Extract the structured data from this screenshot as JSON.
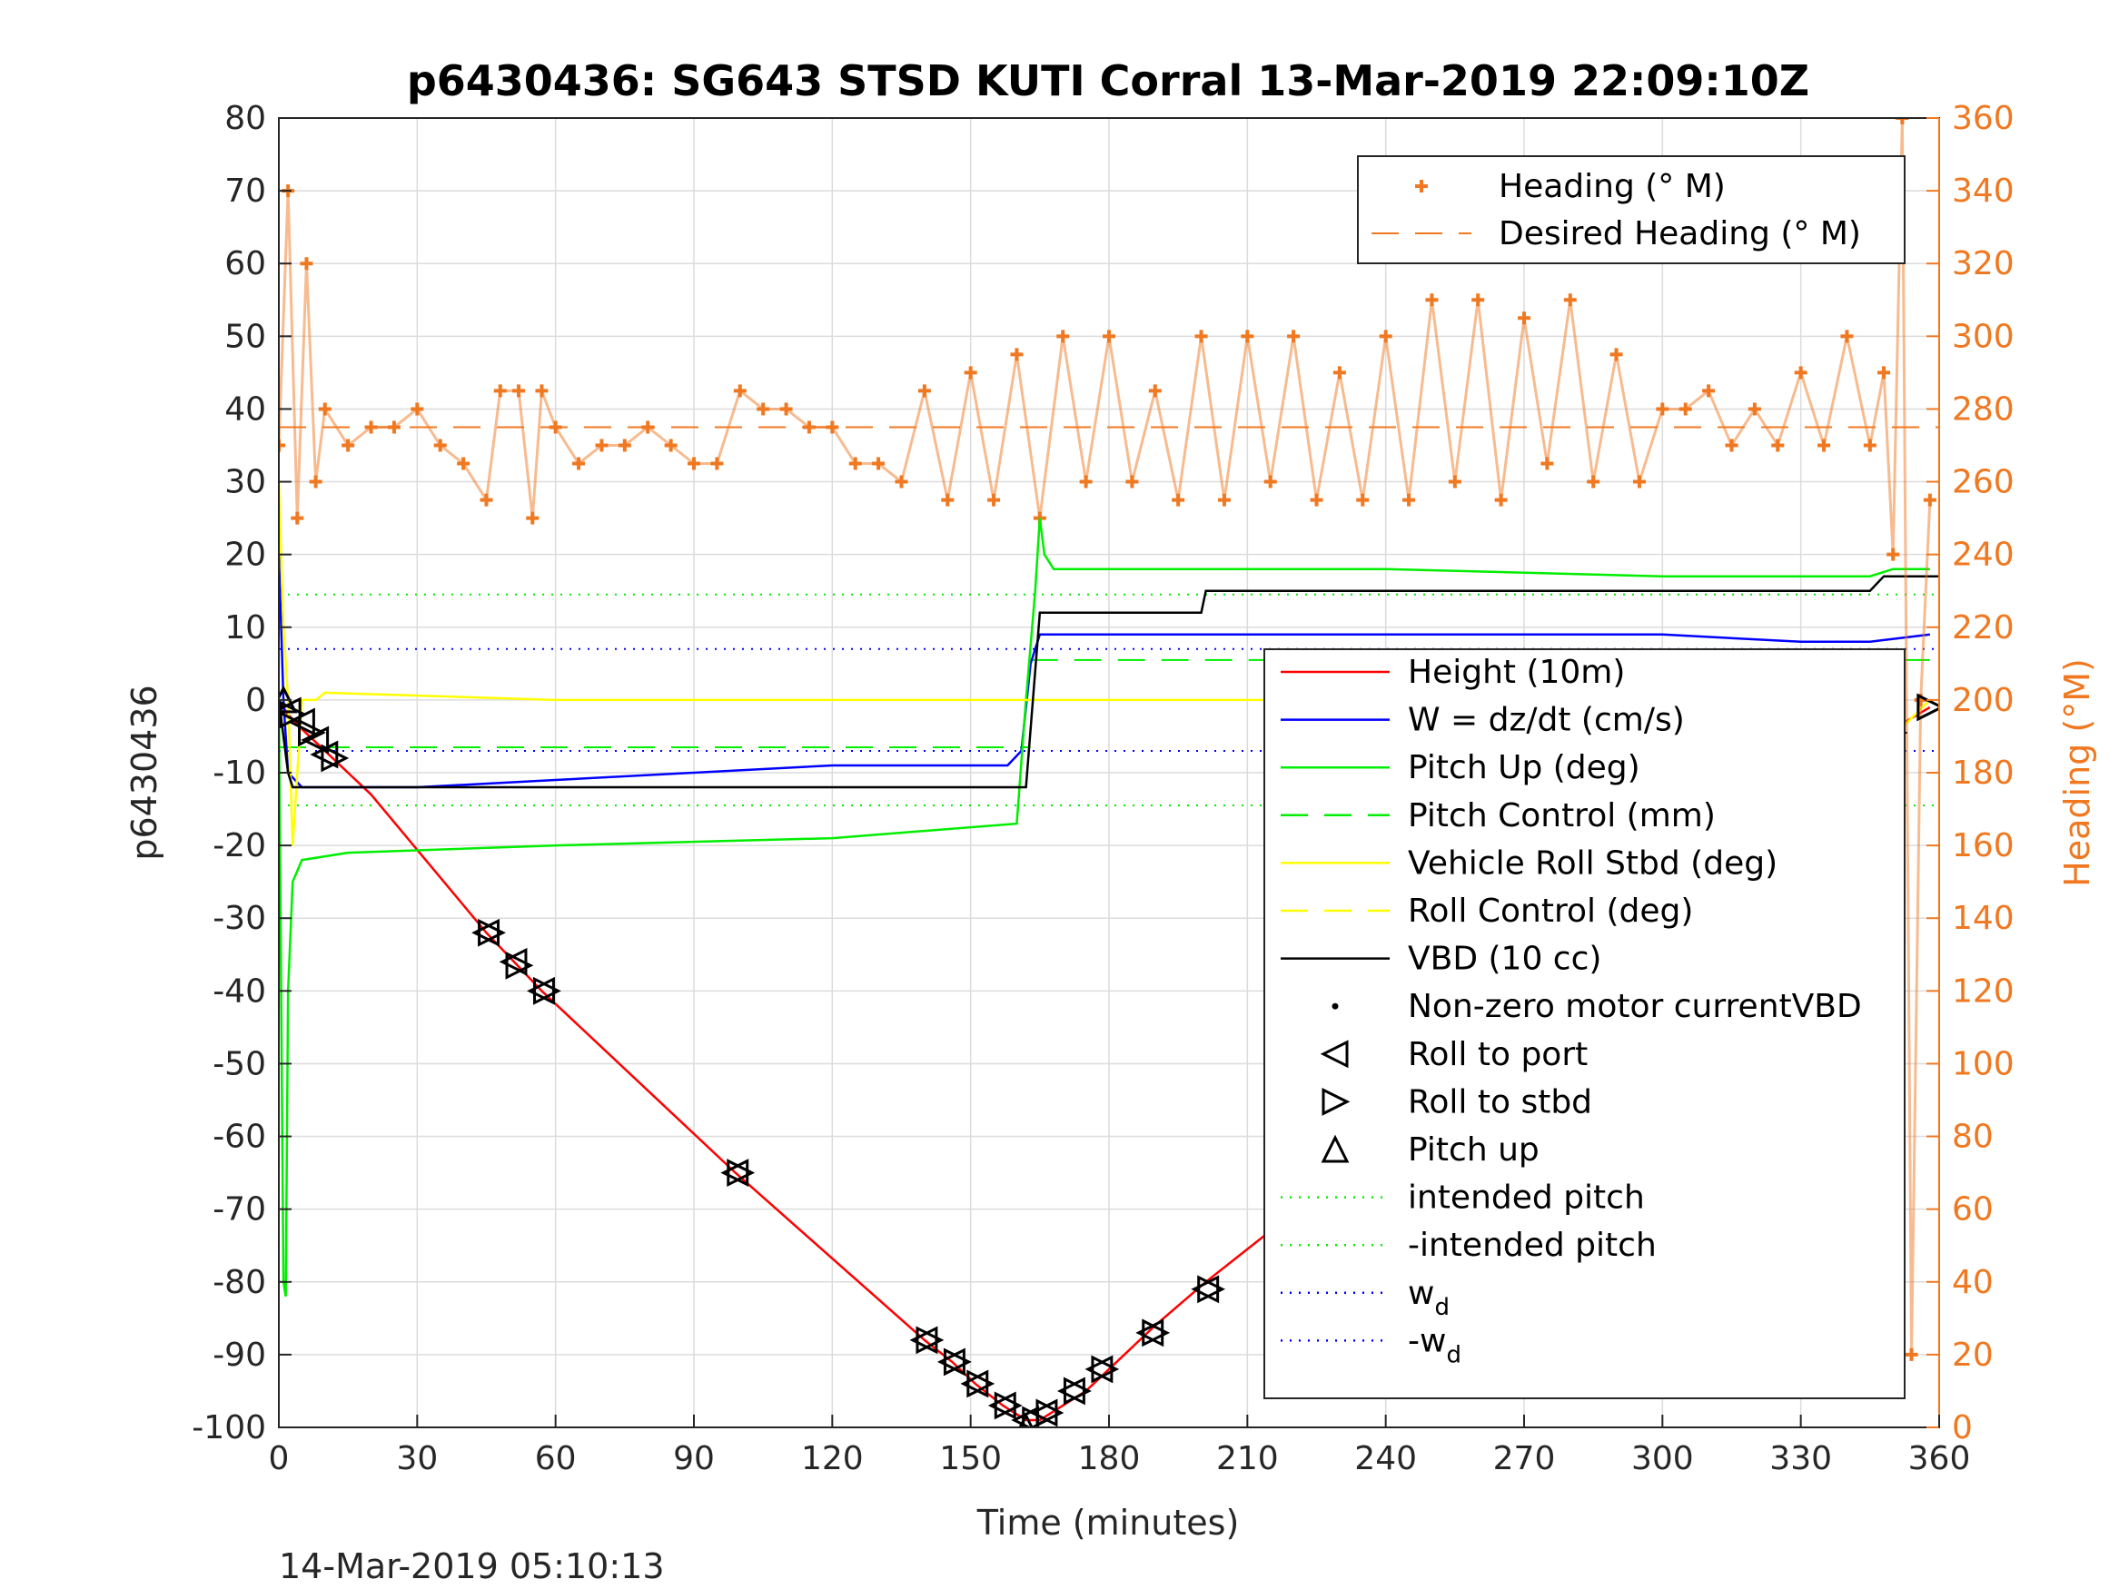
{
  "chart_data": {
    "type": "line",
    "title": "p6430436: SG643 STSD KUTI Corral 13-Mar-2019 22:09:10Z",
    "xlabel": "Time (minutes)",
    "ylabel": "p6430436",
    "ylabel_right": "Heading (°M)",
    "footer_timestamp": "14-Mar-2019 05:10:13",
    "xlim": [
      0,
      360
    ],
    "ylim": [
      -100,
      80
    ],
    "ylim_right": [
      0,
      360
    ],
    "grid": true,
    "x_ticks": [
      0,
      30,
      60,
      90,
      120,
      150,
      180,
      210,
      240,
      270,
      300,
      330,
      360
    ],
    "y_ticks": [
      -100,
      -90,
      -80,
      -70,
      -60,
      -50,
      -40,
      -30,
      -20,
      -10,
      0,
      10,
      20,
      30,
      40,
      50,
      60,
      70,
      80
    ],
    "y_ticks_right": [
      0,
      20,
      40,
      60,
      80,
      100,
      120,
      140,
      160,
      180,
      200,
      220,
      240,
      260,
      280,
      300,
      320,
      340,
      360
    ],
    "colors": {
      "heading": "#f07820",
      "height": "#ff0000",
      "w": "#0000ff",
      "pitch": "#00ee00",
      "roll": "#ffff00",
      "vbd": "#000000",
      "axis_right": "#f07820"
    },
    "heading_legend": {
      "placement": "top-right",
      "entries": [
        {
          "label": "Heading (° M)",
          "marker": "plus",
          "color": "#f07820"
        },
        {
          "label": "Desired Heading (° M)",
          "marker": "dash",
          "color": "#f07820"
        }
      ]
    },
    "legend": {
      "placement": "right",
      "entries": [
        {
          "label": "Height (10m)",
          "style": "solid",
          "color": "#ff0000"
        },
        {
          "label": "W = dz/dt (cm/s)",
          "style": "solid",
          "color": "#0000ff"
        },
        {
          "label": "Pitch Up (deg)",
          "style": "solid",
          "color": "#00ee00"
        },
        {
          "label": "Pitch Control (mm)",
          "style": "dashed",
          "color": "#00ee00"
        },
        {
          "label": "Vehicle Roll Stbd (deg)",
          "style": "solid",
          "color": "#ffff00"
        },
        {
          "label": "Roll Control (deg)",
          "style": "dashed",
          "color": "#ffff00"
        },
        {
          "label": "VBD (10 cc)",
          "style": "solid",
          "color": "#000000"
        },
        {
          "label": "Non-zero motor currentVBD",
          "style": "dot",
          "color": "#000000"
        },
        {
          "label": "Roll to port",
          "style": "tri-left",
          "color": "#000000"
        },
        {
          "label": "Roll to stbd",
          "style": "tri-right",
          "color": "#000000"
        },
        {
          "label": "Pitch up",
          "style": "tri-up",
          "color": "#000000"
        },
        {
          "label": "intended pitch",
          "style": "dotted",
          "color": "#00ee00"
        },
        {
          "label": "-intended pitch",
          "style": "dotted",
          "color": "#00ee00"
        },
        {
          "label": "w",
          "sub": "d",
          "style": "dotted",
          "color": "#0000ff"
        },
        {
          "label": "-w",
          "sub": "d",
          "style": "dotted",
          "color": "#0000ff"
        }
      ]
    },
    "series": [
      {
        "name": "Height (10m)",
        "axis": "left",
        "x": [
          0,
          2,
          5,
          10,
          20,
          45,
          51,
          57,
          99,
          140,
          146,
          151,
          157,
          162,
          165,
          170,
          175,
          180,
          190,
          201,
          217,
          234,
          250,
          266,
          280,
          290,
          300,
          320,
          330,
          340,
          350,
          358
        ],
        "y": [
          0,
          -2,
          -4,
          -7,
          -13,
          -32,
          -36,
          -40,
          -65,
          -88,
          -91,
          -94,
          -97,
          -99,
          -99,
          -97,
          -95,
          -92,
          -86,
          -80,
          -72,
          -63,
          -54,
          -46,
          -39,
          -34,
          -28,
          -19,
          -14,
          -8,
          -4,
          -1
        ]
      },
      {
        "name": "W = dz/dt (cm/s)",
        "axis": "left",
        "x": [
          0,
          1,
          2,
          5,
          10,
          30,
          60,
          90,
          120,
          150,
          158,
          161,
          163,
          165,
          170,
          180,
          210,
          240,
          270,
          300,
          330,
          345,
          358
        ],
        "y": [
          20,
          0,
          -10,
          -12,
          -12,
          -12,
          -11,
          -10,
          -9,
          -9,
          -9,
          -7,
          5,
          9,
          9,
          9,
          9,
          9,
          9,
          9,
          8,
          8,
          9
        ]
      },
      {
        "name": "Pitch Up (deg)",
        "axis": "left",
        "x": [
          0,
          1,
          1.5,
          2,
          3,
          5,
          15,
          60,
          120,
          160,
          162,
          164,
          165,
          166,
          168,
          180,
          240,
          300,
          345,
          350,
          358
        ],
        "y": [
          0,
          -80,
          -82,
          -40,
          -25,
          -22,
          -21,
          -20,
          -19,
          -17,
          0,
          15,
          25,
          20,
          18,
          18,
          18,
          17,
          17,
          18,
          18
        ]
      },
      {
        "name": "Vehicle Roll Stbd (deg)",
        "axis": "left",
        "x": [
          0,
          1,
          2,
          3,
          5,
          8,
          10,
          60,
          100,
          150,
          165,
          200,
          250,
          300,
          340,
          350,
          358
        ],
        "y": [
          30,
          10,
          0,
          -20,
          0,
          0,
          1,
          0,
          0,
          0,
          0,
          0,
          0,
          0,
          0,
          -5,
          0
        ]
      },
      {
        "name": "VBD (10 cc)",
        "axis": "left",
        "x": [
          0,
          2,
          3,
          10,
          30,
          150,
          160,
          162,
          165,
          180,
          200,
          201,
          345,
          348,
          360
        ],
        "y": [
          0,
          -10,
          -12,
          -12,
          -12,
          -12,
          -12,
          -12,
          12,
          12,
          12,
          15,
          15,
          17,
          17
        ]
      },
      {
        "name": "Heading (° M)",
        "axis": "right",
        "x": [
          0,
          2,
          4,
          6,
          8,
          10,
          15,
          20,
          25,
          30,
          35,
          40,
          45,
          48,
          52,
          55,
          57,
          60,
          65,
          70,
          75,
          80,
          85,
          90,
          95,
          100,
          105,
          110,
          115,
          120,
          125,
          130,
          135,
          140,
          145,
          150,
          155,
          160,
          165,
          170,
          175,
          180,
          185,
          190,
          195,
          200,
          205,
          210,
          215,
          220,
          225,
          230,
          235,
          240,
          245,
          250,
          255,
          260,
          265,
          270,
          275,
          280,
          285,
          290,
          295,
          300,
          305,
          310,
          315,
          320,
          325,
          330,
          335,
          340,
          345,
          348,
          350,
          352,
          354,
          356,
          358
        ],
        "y": [
          270,
          340,
          250,
          320,
          260,
          280,
          270,
          275,
          275,
          280,
          270,
          265,
          255,
          285,
          285,
          250,
          285,
          275,
          265,
          270,
          270,
          275,
          270,
          265,
          265,
          285,
          280,
          280,
          275,
          275,
          265,
          265,
          260,
          285,
          255,
          290,
          255,
          295,
          250,
          300,
          260,
          300,
          260,
          285,
          255,
          300,
          255,
          300,
          260,
          300,
          255,
          290,
          255,
          300,
          255,
          310,
          260,
          310,
          255,
          305,
          265,
          310,
          260,
          295,
          260,
          280,
          280,
          285,
          270,
          280,
          270,
          290,
          270,
          300,
          270,
          290,
          240,
          360,
          20,
          200,
          255
        ]
      }
    ],
    "desired_heading_deg": 275,
    "horizontal_lines": [
      {
        "name": "intended pitch",
        "y": 14.5,
        "style": "dotted",
        "color": "#00ee00"
      },
      {
        "name": "-intended pitch",
        "y": -14.5,
        "style": "dotted",
        "color": "#00ee00"
      },
      {
        "name": "w_d",
        "y": 7,
        "style": "dotted",
        "color": "#0000ff"
      },
      {
        "name": "-w_d",
        "y": -7,
        "style": "dotted",
        "color": "#0000ff"
      },
      {
        "name": "Pitch Control (mm)",
        "y": -6.5,
        "x_range": [
          0,
          163
        ],
        "style": "dashed",
        "color": "#00ee00"
      },
      {
        "name": "Pitch Control (mm) ",
        "y": 5.5,
        "x_range": [
          163,
          360
        ],
        "style": "dashed",
        "color": "#00ee00"
      }
    ],
    "markers": {
      "roll_to_port": [
        [
          2,
          -1.5
        ],
        [
          5,
          -3
        ],
        [
          8,
          -5.5
        ],
        [
          10,
          -7.5
        ],
        [
          45,
          -32
        ],
        [
          51,
          -36
        ],
        [
          57,
          -40
        ],
        [
          99,
          -65
        ],
        [
          140,
          -88
        ],
        [
          146,
          -91
        ],
        [
          151,
          -94
        ],
        [
          157,
          -97
        ],
        [
          162,
          -99
        ],
        [
          166,
          -98
        ],
        [
          172,
          -95
        ],
        [
          178,
          -92
        ],
        [
          189,
          -87
        ],
        [
          201,
          -81
        ],
        [
          217,
          -72
        ],
        [
          234,
          -64
        ],
        [
          250,
          -55
        ],
        [
          266,
          -46
        ],
        [
          278,
          -40
        ],
        [
          284,
          -37
        ],
        [
          290,
          -34
        ],
        [
          319,
          -19
        ],
        [
          327,
          -15
        ],
        [
          333,
          -12.5
        ],
        [
          339,
          -9
        ],
        [
          342,
          -8
        ],
        [
          345,
          -6
        ],
        [
          348,
          -5
        ]
      ],
      "roll_to_stbd": [
        [
          3,
          -2
        ],
        [
          7,
          -4.5
        ],
        [
          12,
          -8
        ],
        [
          46,
          -32
        ],
        [
          52,
          -36.5
        ],
        [
          58,
          -40
        ],
        [
          100,
          -65
        ],
        [
          141,
          -88
        ],
        [
          147,
          -91
        ],
        [
          152,
          -94
        ],
        [
          158,
          -97
        ],
        [
          164,
          -99
        ],
        [
          167,
          -98
        ],
        [
          173,
          -95
        ],
        [
          179,
          -92
        ],
        [
          190,
          -87
        ],
        [
          202,
          -81
        ],
        [
          218,
          -72
        ],
        [
          236,
          -64
        ],
        [
          252,
          -55
        ],
        [
          268,
          -46
        ],
        [
          280,
          -40
        ],
        [
          286,
          -37
        ],
        [
          292,
          -34
        ],
        [
          320,
          -19
        ],
        [
          328,
          -15
        ],
        [
          335,
          -12.5
        ],
        [
          341,
          -9
        ],
        [
          344,
          -7
        ],
        [
          347,
          -5.5
        ],
        [
          350,
          -4.5
        ],
        [
          358,
          -1
        ]
      ],
      "pitch_up": [
        [
          1,
          0
        ],
        [
          162,
          -100
        ]
      ]
    }
  }
}
